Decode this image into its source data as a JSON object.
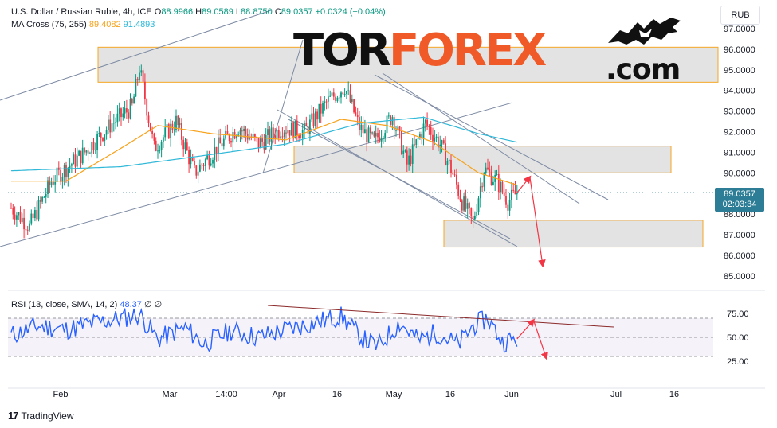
{
  "legend": {
    "symbol": "U.S. Dollar / Russian Ruble, 4h, ICE",
    "ohlc": [
      {
        "k": "O",
        "v": "88.9966"
      },
      {
        "k": "H",
        "v": "89.0589"
      },
      {
        "k": "L",
        "v": "88.8750"
      },
      {
        "k": "C",
        "v": "89.0357"
      }
    ],
    "change": "+0.0324 (+0.04%)",
    "ma_label": "MA Cross (75, 255)",
    "ma_fast": "89.4082",
    "ma_slow": "91.4893",
    "rsi_label": "RSI (13, close, SMA, 14, 2)",
    "rsi_value": "48.37",
    "rsi_extra": "∅ ∅"
  },
  "currency": "RUB",
  "price_tag": {
    "price": "89.0357",
    "countdown": "02:03:34"
  },
  "logo": {
    "part1": "TOR",
    "part2": "FOREX",
    "part3": ".com",
    "icon": "bull-bear-icon"
  },
  "branding": {
    "icon": "tradingview-logo-icon",
    "mark": "17",
    "text": "TradingView"
  },
  "colors": {
    "up": "#089981",
    "down": "#f23645",
    "ma_fast": "#f7a21b",
    "ma_slow": "#2fb8d8",
    "rsi": "#2962ff",
    "zone": "#d9d9d9",
    "zone_border": "#f5a623",
    "arrow": "#f23645",
    "channel": "#7c8aa3",
    "rsi_trend": "#8b2a2a",
    "price_tag": "#2c7d95"
  },
  "chart_data": [
    {
      "type": "candlestick",
      "timeframe": "4h",
      "y_axis_ticks": [
        "97.0000",
        "96.0000",
        "95.0000",
        "94.0000",
        "93.0000",
        "92.0000",
        "91.0000",
        "90.0000",
        "89.0000",
        "88.0000",
        "87.0000",
        "86.0000",
        "85.0000"
      ],
      "y_range": [
        84.6,
        97.4
      ],
      "x_axis_ticks": [
        "Feb",
        "Mar",
        "14:00",
        "Apr",
        "16",
        "May",
        "16",
        "Jun",
        "Jul",
        "16"
      ],
      "anchors": [
        {
          "t": 0,
          "p": 88.3
        },
        {
          "t": 10,
          "p": 87.4
        },
        {
          "t": 22,
          "p": 89.6
        },
        {
          "t": 40,
          "p": 91.0
        },
        {
          "t": 55,
          "p": 92.4
        },
        {
          "t": 66,
          "p": 93.2
        },
        {
          "t": 70,
          "p": 95.1
        },
        {
          "t": 78,
          "p": 91.2
        },
        {
          "t": 90,
          "p": 92.5
        },
        {
          "t": 100,
          "p": 90.0
        },
        {
          "t": 112,
          "p": 91.2
        },
        {
          "t": 124,
          "p": 92.2
        },
        {
          "t": 135,
          "p": 91.4
        },
        {
          "t": 148,
          "p": 92.2
        },
        {
          "t": 160,
          "p": 92.0
        },
        {
          "t": 172,
          "p": 93.4
        },
        {
          "t": 182,
          "p": 94.2
        },
        {
          "t": 190,
          "p": 92.2
        },
        {
          "t": 198,
          "p": 91.5
        },
        {
          "t": 208,
          "p": 92.8
        },
        {
          "t": 216,
          "p": 90.4
        },
        {
          "t": 226,
          "p": 92.4
        },
        {
          "t": 234,
          "p": 91.4
        },
        {
          "t": 240,
          "p": 90.2
        },
        {
          "t": 246,
          "p": 88.6
        },
        {
          "t": 252,
          "p": 87.6
        },
        {
          "t": 258,
          "p": 90.2
        },
        {
          "t": 265,
          "p": 89.6
        },
        {
          "t": 271,
          "p": 88.6
        },
        {
          "t": 276,
          "p": 89.04
        }
      ],
      "total_bars": 276,
      "ma_fast": [
        {
          "t": 0,
          "p": 89.6
        },
        {
          "t": 30,
          "p": 89.6
        },
        {
          "t": 60,
          "p": 91.2
        },
        {
          "t": 80,
          "p": 92.3
        },
        {
          "t": 110,
          "p": 91.9
        },
        {
          "t": 150,
          "p": 91.6
        },
        {
          "t": 180,
          "p": 92.6
        },
        {
          "t": 205,
          "p": 92.3
        },
        {
          "t": 230,
          "p": 91.5
        },
        {
          "t": 255,
          "p": 90.0
        },
        {
          "t": 276,
          "p": 89.41
        }
      ],
      "ma_slow": [
        {
          "t": 0,
          "p": 90.1
        },
        {
          "t": 60,
          "p": 90.3
        },
        {
          "t": 110,
          "p": 90.9
        },
        {
          "t": 150,
          "p": 91.4
        },
        {
          "t": 190,
          "p": 92.4
        },
        {
          "t": 225,
          "p": 92.7
        },
        {
          "t": 255,
          "p": 91.9
        },
        {
          "t": 276,
          "p": 91.49
        }
      ],
      "zones": [
        {
          "p_top": 96.1,
          "p_bottom": 94.4
        },
        {
          "p_top": 91.3,
          "p_bottom": 90.0
        },
        {
          "p_top": 87.7,
          "p_bottom": 86.4
        }
      ],
      "projection": [
        {
          "t": 276,
          "p": 89.04
        },
        {
          "t": 283,
          "p": 89.8
        },
        {
          "t": 290,
          "p": 85.5
        }
      ]
    },
    {
      "type": "line",
      "name": "RSI",
      "y_axis_ticks": [
        "75.00",
        "50.00",
        "25.00"
      ],
      "y_range": [
        0,
        100
      ],
      "bands": [
        70,
        30
      ],
      "midline": 50,
      "anchors": [
        {
          "t": 0,
          "p": 52
        },
        {
          "t": 15,
          "p": 62
        },
        {
          "t": 30,
          "p": 58
        },
        {
          "t": 45,
          "p": 65
        },
        {
          "t": 60,
          "p": 70
        },
        {
          "t": 70,
          "p": 74
        },
        {
          "t": 80,
          "p": 48
        },
        {
          "t": 95,
          "p": 60
        },
        {
          "t": 105,
          "p": 43
        },
        {
          "t": 120,
          "p": 57
        },
        {
          "t": 135,
          "p": 50
        },
        {
          "t": 150,
          "p": 58
        },
        {
          "t": 165,
          "p": 65
        },
        {
          "t": 180,
          "p": 72
        },
        {
          "t": 192,
          "p": 48
        },
        {
          "t": 200,
          "p": 40
        },
        {
          "t": 212,
          "p": 65
        },
        {
          "t": 222,
          "p": 47
        },
        {
          "t": 232,
          "p": 55
        },
        {
          "t": 244,
          "p": 42
        },
        {
          "t": 252,
          "p": 62
        },
        {
          "t": 260,
          "p": 70
        },
        {
          "t": 268,
          "p": 45
        },
        {
          "t": 276,
          "p": 48.37
        }
      ],
      "projection": [
        {
          "t": 276,
          "p": 48.37
        },
        {
          "t": 285,
          "p": 68
        },
        {
          "t": 292,
          "p": 28
        }
      ]
    }
  ]
}
